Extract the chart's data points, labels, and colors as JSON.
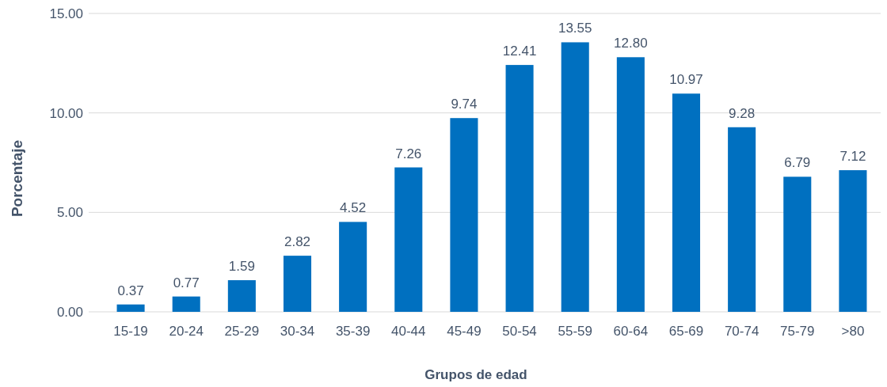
{
  "chart_data": {
    "type": "bar",
    "xlabel": "Grupos de edad",
    "ylabel": "Porcentaje",
    "categories": [
      "15-19",
      "20-24",
      "25-29",
      "30-34",
      "35-39",
      "40-44",
      "45-49",
      "50-54",
      "55-59",
      "60-64",
      "65-69",
      "70-74",
      "75-79",
      ">80"
    ],
    "values": [
      0.37,
      0.77,
      1.59,
      2.82,
      4.52,
      7.26,
      9.74,
      12.41,
      13.55,
      12.8,
      10.97,
      9.28,
      6.79,
      7.12
    ],
    "value_labels": [
      "0.37",
      "0.77",
      "1.59",
      "2.82",
      "4.52",
      "7.26",
      "9.74",
      "12.41",
      "13.55",
      "12.80",
      "10.97",
      "9.28",
      "6.79",
      "7.12"
    ],
    "color": "#0070c0",
    "ylim": [
      0,
      15
    ],
    "yticks": [
      {
        "value": 0,
        "label": "0.00"
      },
      {
        "value": 5,
        "label": "5.00"
      },
      {
        "value": 10,
        "label": "10.00"
      },
      {
        "value": 15,
        "label": "15.00"
      }
    ],
    "grid": "y"
  }
}
